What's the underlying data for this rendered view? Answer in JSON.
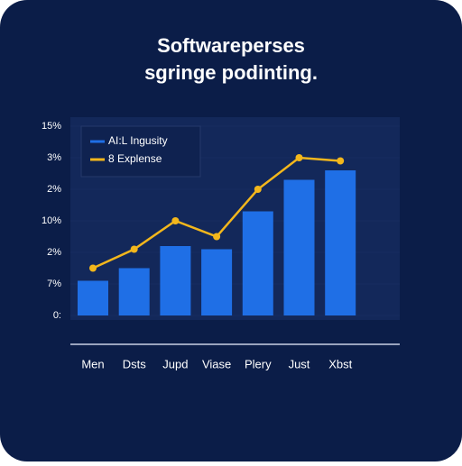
{
  "chart_data": {
    "type": "bar",
    "title": "Softwareperses",
    "subtitle": "sgringe podinting.",
    "categories": [
      "Men",
      "Dsts",
      "Jupd",
      "Viase",
      "Plery",
      "Just",
      "Xbst"
    ],
    "series": [
      {
        "name": "AI:L Ingusity",
        "type": "bar",
        "color": "#1f6fe6",
        "values": [
          1.1,
          1.5,
          2.2,
          2.1,
          3.3,
          4.3,
          4.6
        ]
      },
      {
        "name": "8 Explense",
        "type": "line",
        "color": "#f3b71c",
        "values": [
          1.5,
          2.1,
          3.0,
          2.5,
          4.0,
          5.0,
          4.9
        ]
      }
    ],
    "ylim": [
      0,
      6
    ],
    "yticks": [
      {
        "value": 0,
        "label": "0:"
      },
      {
        "value": 1,
        "label": "7%"
      },
      {
        "value": 2,
        "label": "2%"
      },
      {
        "value": 3,
        "label": "10%"
      },
      {
        "value": 4,
        "label": "2%"
      },
      {
        "value": 5,
        "label": "3%"
      },
      {
        "value": 6,
        "label": "15%"
      }
    ],
    "legend": "top-left"
  }
}
